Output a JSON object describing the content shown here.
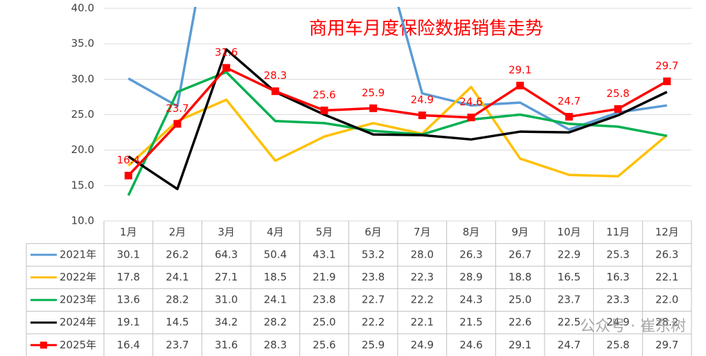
{
  "chart_data": {
    "type": "line",
    "title": "商用车月度保险数据销售走势",
    "categories": [
      "1月",
      "2月",
      "3月",
      "4月",
      "5月",
      "6月",
      "7月",
      "8月",
      "9月",
      "10月",
      "11月",
      "12月"
    ],
    "series": [
      {
        "name": "2021年",
        "color": "#5b9bd5",
        "values": [
          30.1,
          26.2,
          64.3,
          50.4,
          43.1,
          53.2,
          28.0,
          26.3,
          26.7,
          22.9,
          25.3,
          26.3
        ],
        "value_labels": [
          "30.1",
          "26.2",
          "64.3",
          "50.4",
          "43.1",
          "53.2",
          "28.0",
          "26.3",
          "26.7",
          "22.9",
          "25.3",
          "26.3"
        ]
      },
      {
        "name": "2022年",
        "color": "#ffc000",
        "values": [
          17.8,
          24.1,
          27.1,
          18.5,
          21.9,
          23.8,
          22.3,
          28.9,
          18.8,
          16.5,
          16.3,
          22.1
        ],
        "value_labels": [
          "17.8",
          "24.1",
          "27.1",
          "18.5",
          "21.9",
          "23.8",
          "22.3",
          "28.9",
          "18.8",
          "16.5",
          "16.3",
          "22.1"
        ]
      },
      {
        "name": "2023年",
        "color": "#00b050",
        "values": [
          13.6,
          28.2,
          31.0,
          24.1,
          23.8,
          22.7,
          22.2,
          24.3,
          25.0,
          23.7,
          23.3,
          22.0
        ],
        "value_labels": [
          "13.6",
          "28.2",
          "31.0",
          "24.1",
          "23.8",
          "22.7",
          "22.2",
          "24.3",
          "25.0",
          "23.7",
          "23.3",
          "22.0"
        ]
      },
      {
        "name": "2024年",
        "color": "#000000",
        "values": [
          19.1,
          14.5,
          34.2,
          28.2,
          25.0,
          22.2,
          22.1,
          21.5,
          22.6,
          22.5,
          24.9,
          28.2
        ],
        "value_labels": [
          "19.1",
          "14.5",
          "34.2",
          "28.2",
          "25.0",
          "22.2",
          "22.1",
          "21.5",
          "22.6",
          "22.5",
          "24.9",
          "28.2"
        ]
      },
      {
        "name": "2025年",
        "color": "#ff0000",
        "marker": "square",
        "data_labels": true,
        "values": [
          16.4,
          23.7,
          31.6,
          28.3,
          25.6,
          25.9,
          24.9,
          24.6,
          29.1,
          24.7,
          25.8,
          29.7
        ],
        "value_labels": [
          "16.4",
          "23.7",
          "31.6",
          "28.3",
          "25.6",
          "25.9",
          "24.9",
          "24.6",
          "29.1",
          "24.7",
          "25.8",
          "29.7"
        ]
      }
    ],
    "ylim": [
      10,
      40
    ],
    "yticks": [
      {
        "value": 10,
        "label": "10.0"
      },
      {
        "value": 15,
        "label": "15.0"
      },
      {
        "value": 20,
        "label": "20.0"
      },
      {
        "value": 25,
        "label": "25.0"
      },
      {
        "value": 30,
        "label": "30.0"
      },
      {
        "value": 35,
        "label": "35.0"
      },
      {
        "value": 40,
        "label": "40.0"
      }
    ],
    "grid": true,
    "data_table": true,
    "watermark": "公众号 · 崔东树"
  }
}
